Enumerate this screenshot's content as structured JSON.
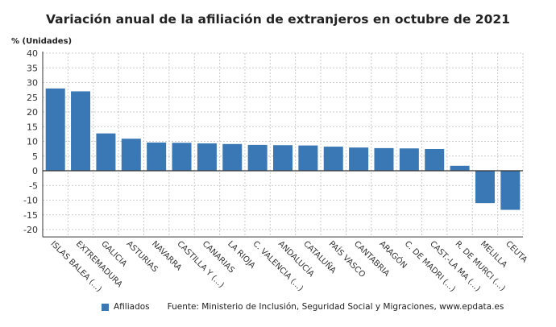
{
  "chart_data": {
    "type": "bar",
    "title": "Variación anual de la afiliación de extranjeros en octubre de 2021",
    "ylabel": "% (Unidades)",
    "ylim": [
      -22.5,
      40
    ],
    "yticks": [
      40,
      35,
      30,
      25,
      20,
      15,
      10,
      5,
      0,
      -5,
      -10,
      -15,
      -20
    ],
    "grid": true,
    "legend_position": "bottom",
    "color": "#3a78b5",
    "categories": [
      "ISLAS BALEA (...)",
      "EXTREMADURA",
      "GALICIA",
      "ASTURIAS",
      "NAVARRA",
      "CASTILLA Y (...)",
      "CANARIAS",
      "LA RIOJA",
      "C. VALENCIA (...)",
      "ANDALUCÍA",
      "CATALUÑA",
      "PAÍS VASCO",
      "CANTABRIA",
      "ARAGÓN",
      "C. DE MADRI (...)",
      "CAST.-LA MA (...)",
      "R. DE MURCI (...)",
      "MELILLA",
      "CEUTA"
    ],
    "series": [
      {
        "name": "Afiliados",
        "values": [
          28.0,
          27.0,
          12.7,
          10.9,
          9.6,
          9.5,
          9.3,
          9.1,
          8.8,
          8.7,
          8.6,
          8.2,
          7.9,
          7.7,
          7.6,
          7.4,
          1.7,
          -11.0,
          -13.3
        ]
      }
    ]
  },
  "legend": {
    "series_label": "Afiliados"
  },
  "source": "Fuente: Ministerio de Inclusión, Seguridad Social y Migraciones, www.epdata.es"
}
